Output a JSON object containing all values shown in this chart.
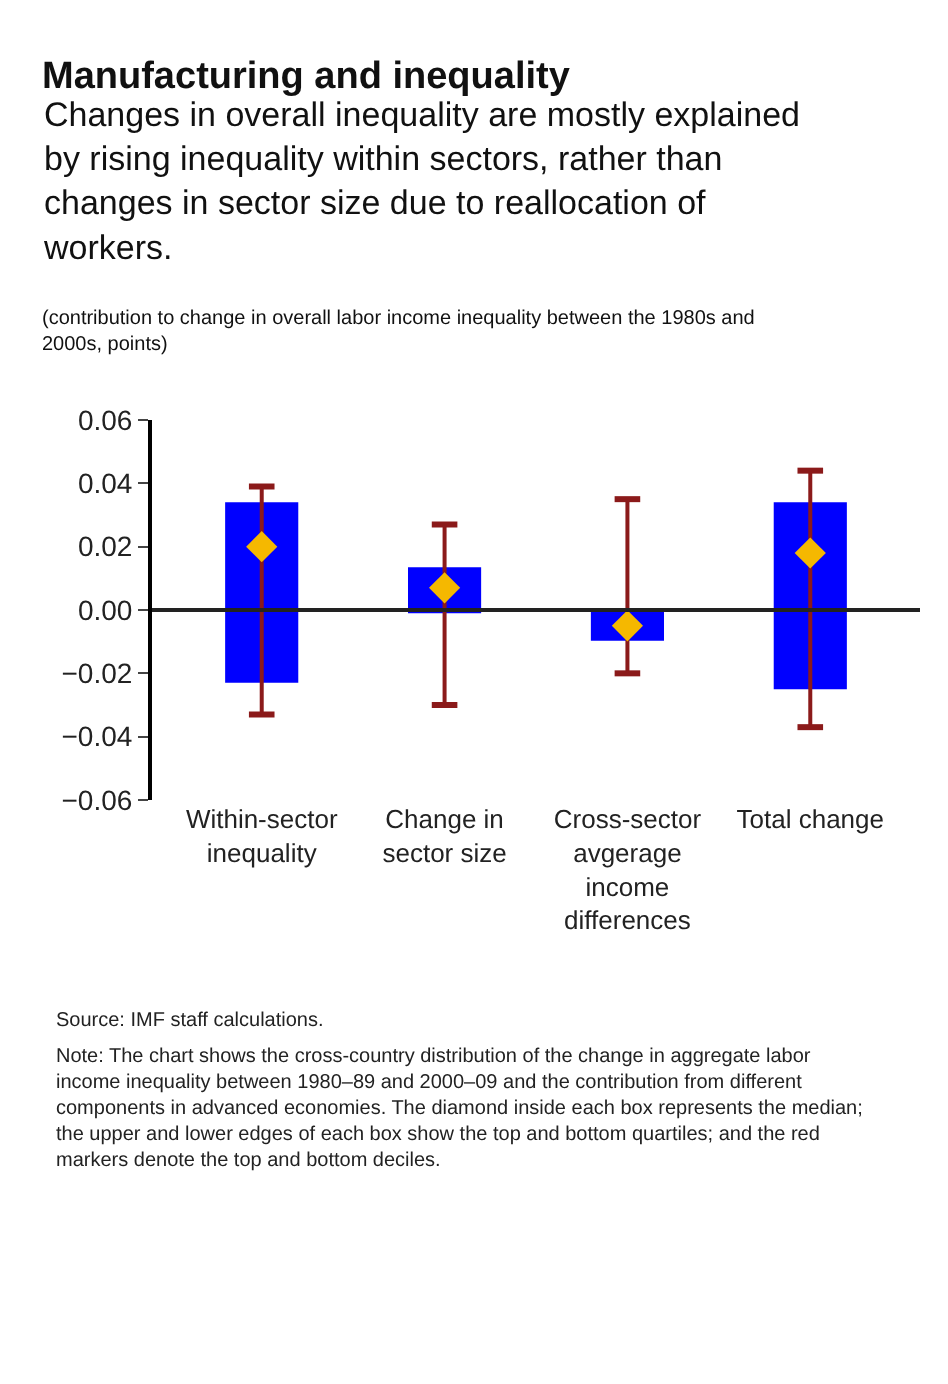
{
  "chart_data": {
    "type": "box",
    "title": "Manufacturing and inequality",
    "subtitle": "Changes in overall inequality are mostly explained by rising inequality within sectors, rather than changes in sector size due to reallocation of workers.",
    "ylabel": "(contribution to change in overall labor income inequality between the 1980s and 2000s, points)",
    "categories": [
      "Within-sector\ninequality",
      "Change in\nsector size",
      "Cross-sector\navgerage\nincome\ndifferences",
      "Total change"
    ],
    "colors": [
      "#0000ff",
      "#0000ff",
      "#0000ff",
      "#0000ff"
    ],
    "boxes": [
      {
        "low": -0.033,
        "q1": -0.023,
        "median": 0.02,
        "q3": 0.034,
        "high": 0.039
      },
      {
        "low": -0.03,
        "q1": -0.001,
        "median": 0.007,
        "q3": 0.0135,
        "high": 0.027
      },
      {
        "low": -0.02,
        "q1": -0.0097,
        "median": -0.005,
        "q3": 0.0,
        "high": 0.035
      },
      {
        "low": -0.037,
        "q1": -0.025,
        "median": 0.018,
        "q3": 0.034,
        "high": 0.044
      }
    ],
    "ylim": [
      -0.06,
      0.06
    ],
    "yticks": [
      {
        "value": -0.06,
        "label": "−0.06"
      },
      {
        "value": -0.04,
        "label": "−0.04"
      },
      {
        "value": -0.02,
        "label": "−0.02"
      },
      {
        "value": 0,
        "label": "0.00"
      },
      {
        "value": 0.02,
        "label": "0.02"
      },
      {
        "value": 0.04,
        "label": "0.04"
      },
      {
        "value": 0.06,
        "label": "0.06"
      }
    ],
    "ref_lines": [
      {
        "axis": "y",
        "value": 0,
        "color": "#222222"
      }
    ],
    "marker": "diamond",
    "annotations": [
      "Source: IMF staff calculations.",
      "Note: The chart shows the cross-country distribution of the change in aggregate labor income inequality between 1980–89 and 2000–09 and the contribution from different components in advanced economies. The diamond inside each box represents the median; the upper and lower edges of each box show the top and bottom quartiles; and the red markers denote the top and bottom deciles."
    ]
  }
}
